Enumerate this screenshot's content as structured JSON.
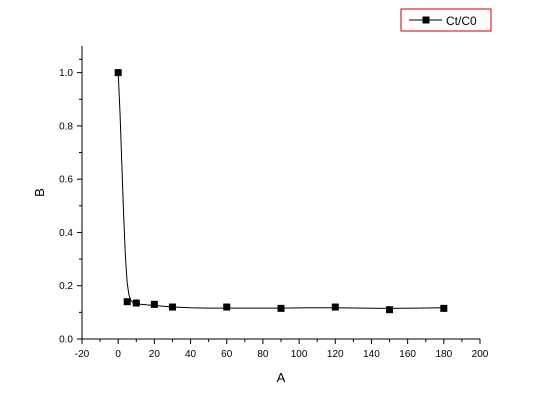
{
  "chart_data": {
    "type": "scatter",
    "xlabel": "A",
    "ylabel": "B",
    "xlim": [
      -20,
      200
    ],
    "ylim": [
      0.0,
      1.1
    ],
    "x_ticks": [
      "-20",
      "0",
      "20",
      "40",
      "60",
      "80",
      "100",
      "120",
      "140",
      "160",
      "180",
      "200"
    ],
    "y_ticks": [
      "0.0",
      "0.2",
      "0.4",
      "0.6",
      "0.8",
      "1.0"
    ],
    "grid": false,
    "legend_position": "top-right",
    "series": [
      {
        "name": "Ct/C0",
        "marker": "square",
        "color": "#000000",
        "x": [
          0,
          5,
          10,
          20,
          30,
          60,
          90,
          120,
          150,
          180
        ],
        "y": [
          1.0,
          0.14,
          0.135,
          0.13,
          0.12,
          0.12,
          0.115,
          0.12,
          0.11,
          0.115
        ]
      }
    ],
    "fit_curve": {
      "color": "#000000",
      "x": [
        0,
        1,
        2,
        3,
        4,
        5,
        6,
        7,
        8,
        10,
        13,
        16,
        20,
        25,
        30,
        40,
        50,
        60,
        75,
        90,
        105,
        120,
        135,
        150,
        165,
        180
      ],
      "y": [
        1.0,
        0.85,
        0.66,
        0.47,
        0.31,
        0.21,
        0.165,
        0.145,
        0.138,
        0.133,
        0.13,
        0.128,
        0.126,
        0.123,
        0.12,
        0.117,
        0.116,
        0.116,
        0.116,
        0.116,
        0.117,
        0.117,
        0.116,
        0.115,
        0.116,
        0.117
      ]
    },
    "legend_border_color": "#cc0000"
  }
}
